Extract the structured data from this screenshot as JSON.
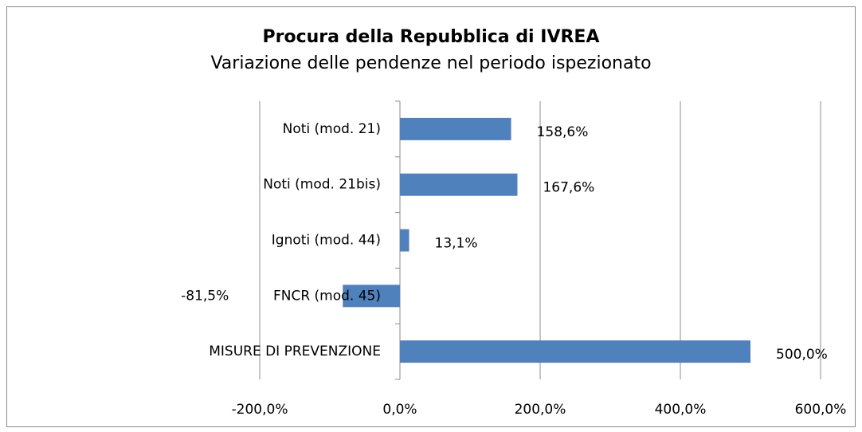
{
  "chart_data": {
    "type": "bar",
    "orientation": "horizontal",
    "title": "Procura della Repubblica di IVREA",
    "subtitle": "Variazione delle pendenze nel periodo ispezionato",
    "categories": [
      "Noti (mod. 21)",
      "Noti (mod. 21bis)",
      "Ignoti (mod. 44)",
      "FNCR (mod. 45)",
      "MISURE DI PREVENZIONE"
    ],
    "values": [
      158.6,
      167.6,
      13.1,
      -81.5,
      500.0
    ],
    "value_labels": [
      "158,6%",
      "167,6%",
      "13,1%",
      "-81,5%",
      "500,0%"
    ],
    "color": "#4f81bd",
    "xlim": [
      -200,
      600
    ],
    "xticks": [
      {
        "value": -200,
        "label": "-200,0%"
      },
      {
        "value": 0,
        "label": "0,0%"
      },
      {
        "value": 200,
        "label": "200,0%"
      },
      {
        "value": 400,
        "label": "400,0%"
      },
      {
        "value": 600,
        "label": "600,0%"
      }
    ],
    "grid": true
  }
}
